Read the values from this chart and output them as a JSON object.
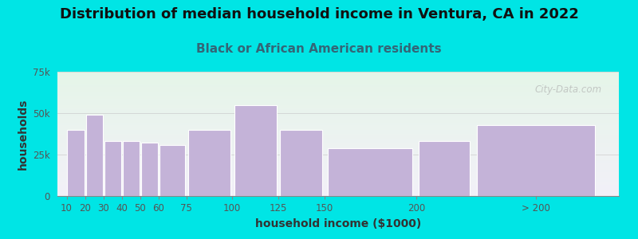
{
  "title": "Distribution of median household income in Ventura, CA in 2022",
  "subtitle": "Black or African American residents",
  "xlabel": "household income ($1000)",
  "ylabel": "households",
  "bar_left_edges": [
    10,
    20,
    30,
    40,
    50,
    60,
    75,
    100,
    125,
    150,
    200,
    230
  ],
  "bar_widths": [
    10,
    10,
    10,
    10,
    10,
    15,
    25,
    25,
    25,
    50,
    30,
    70
  ],
  "values": [
    40000,
    49000,
    33000,
    33000,
    32000,
    31000,
    40000,
    55000,
    40000,
    29000,
    33000,
    43000
  ],
  "xtick_positions": [
    10,
    20,
    30,
    40,
    50,
    60,
    75,
    100,
    125,
    150,
    200
  ],
  "xtick_labels": [
    "10",
    "20",
    "30",
    "40",
    "50",
    "60",
    "75",
    "100",
    "125",
    "150",
    "200"
  ],
  "xlim_min": 5,
  "xlim_max": 310,
  "bar_color": "#c4b3d8",
  "bar_edge_color": "#ffffff",
  "background_color": "#00e5e5",
  "plot_bg_top": "#e5f5e8",
  "plot_bg_bottom": "#f2f0f8",
  "ylim": [
    0,
    75000
  ],
  "yticks": [
    0,
    25000,
    50000,
    75000
  ],
  "ytick_labels": [
    "0",
    "25k",
    "50k",
    "75k"
  ],
  "title_fontsize": 13,
  "subtitle_fontsize": 11,
  "axis_label_fontsize": 10,
  "watermark": "City-Data.com",
  "gt200_label": "> 200",
  "gt200_tick_x": 265
}
